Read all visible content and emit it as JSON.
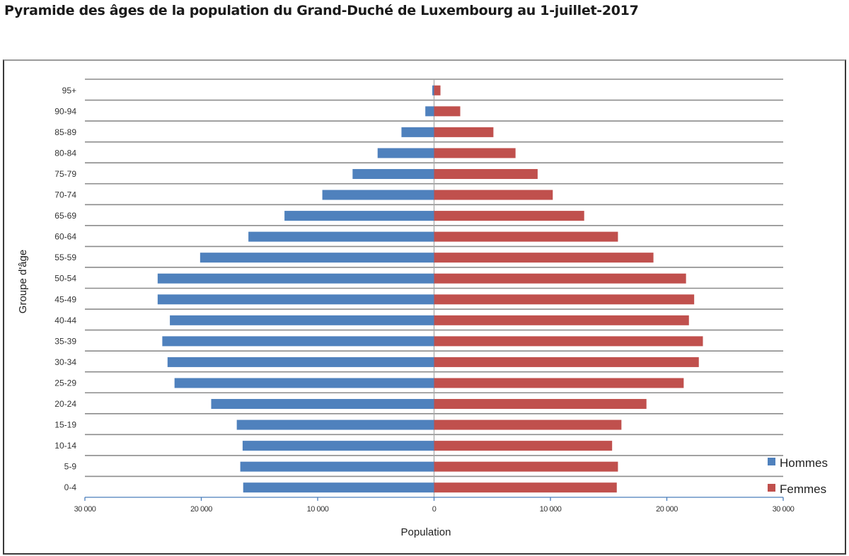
{
  "chart_data": {
    "type": "bar",
    "orientation": "horizontal-pyramid",
    "title": "Pyramide des âges de la population du Grand-Duché de Luxembourg au 1-juillet-2017",
    "xlabel": "Population",
    "ylabel": "Groupe d'âge",
    "xlim": [
      -30000,
      30000
    ],
    "xticks": [
      -30000,
      -20000,
      -10000,
      0,
      10000,
      20000,
      30000
    ],
    "xtick_labels": [
      "30 000",
      "20 000",
      "10 000",
      "0",
      "10 000",
      "20 000",
      "30 000"
    ],
    "grid": true,
    "legend_position": "bottom-right",
    "categories": [
      "95+",
      "90-94",
      "85-89",
      "80-84",
      "75-79",
      "70-74",
      "65-69",
      "60-64",
      "55-59",
      "50-54",
      "45-49",
      "40-44",
      "35-39",
      "30-34",
      "25-29",
      "20-24",
      "15-19",
      "10-14",
      "5-9",
      "0-4"
    ],
    "series": [
      {
        "name": "Hommes",
        "color": "#4F81BD",
        "side": "left",
        "values": [
          150,
          750,
          2800,
          4850,
          7000,
          9600,
          12850,
          15950,
          20100,
          23750,
          23750,
          22700,
          23350,
          22900,
          22300,
          19150,
          16950,
          16450,
          16650,
          16400
        ]
      },
      {
        "name": "Femmes",
        "color": "#C0504D",
        "side": "right",
        "values": [
          550,
          2250,
          5100,
          7000,
          8900,
          10200,
          12900,
          15800,
          18850,
          21650,
          22350,
          21900,
          23100,
          22750,
          21450,
          18250,
          16100,
          15300,
          15800,
          15700
        ]
      }
    ]
  }
}
